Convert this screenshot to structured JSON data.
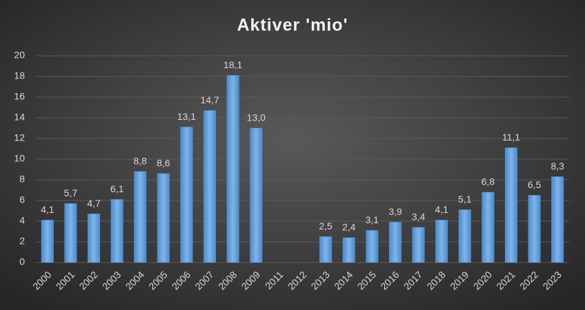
{
  "chart_data": {
    "type": "bar",
    "title": "Aktiver 'mio'",
    "categories": [
      "2000",
      "2001",
      "2002",
      "2003",
      "2004",
      "2005",
      "2006",
      "2007",
      "2008",
      "2009",
      "2011",
      "2012",
      "2013",
      "2014",
      "2015",
      "2016",
      "2017",
      "2018",
      "2019",
      "2020",
      "2021",
      "2022",
      "2023"
    ],
    "values": [
      4.1,
      5.7,
      4.7,
      6.1,
      8.8,
      8.6,
      13.1,
      14.7,
      18.1,
      13.0,
      null,
      null,
      2.5,
      2.4,
      3.1,
      3.9,
      3.4,
      4.1,
      5.1,
      6.8,
      11.1,
      6.5,
      8.3
    ],
    "value_labels": [
      "4,1",
      "5,7",
      "4,7",
      "6,1",
      "8,8",
      "8,6",
      "13,1",
      "14,7",
      "18,1",
      "13,0",
      null,
      null,
      "2,5",
      "2,4",
      "3,1",
      "3,9",
      "3,4",
      "4,1",
      "5,1",
      "6,8",
      "11,1",
      "6,5",
      "8,3"
    ],
    "color": "#5b9bd5",
    "ylim": [
      0,
      20
    ],
    "yticks": [
      0,
      2,
      4,
      6,
      8,
      10,
      12,
      14,
      16,
      18,
      20
    ],
    "grid": true
  }
}
